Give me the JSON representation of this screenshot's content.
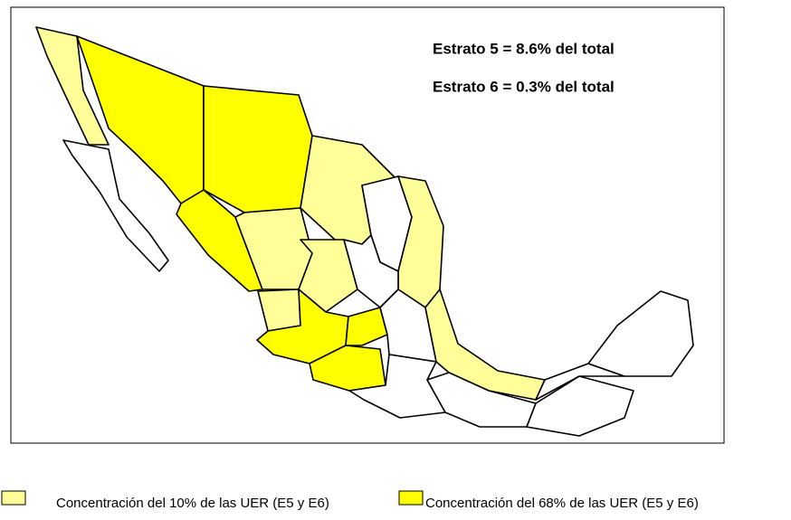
{
  "map": {
    "annotations": [
      "Estrato 5 = 8.6% del total",
      "Estrato 6 = 0.3% del total"
    ],
    "legend": [
      {
        "label": "Concentración del 10% de las UER (E5 y E6)",
        "color": "#ffff99"
      },
      {
        "label": "Concentración del 68% de las UER (E5 y E6)",
        "color": "#ffff00"
      }
    ]
  }
}
